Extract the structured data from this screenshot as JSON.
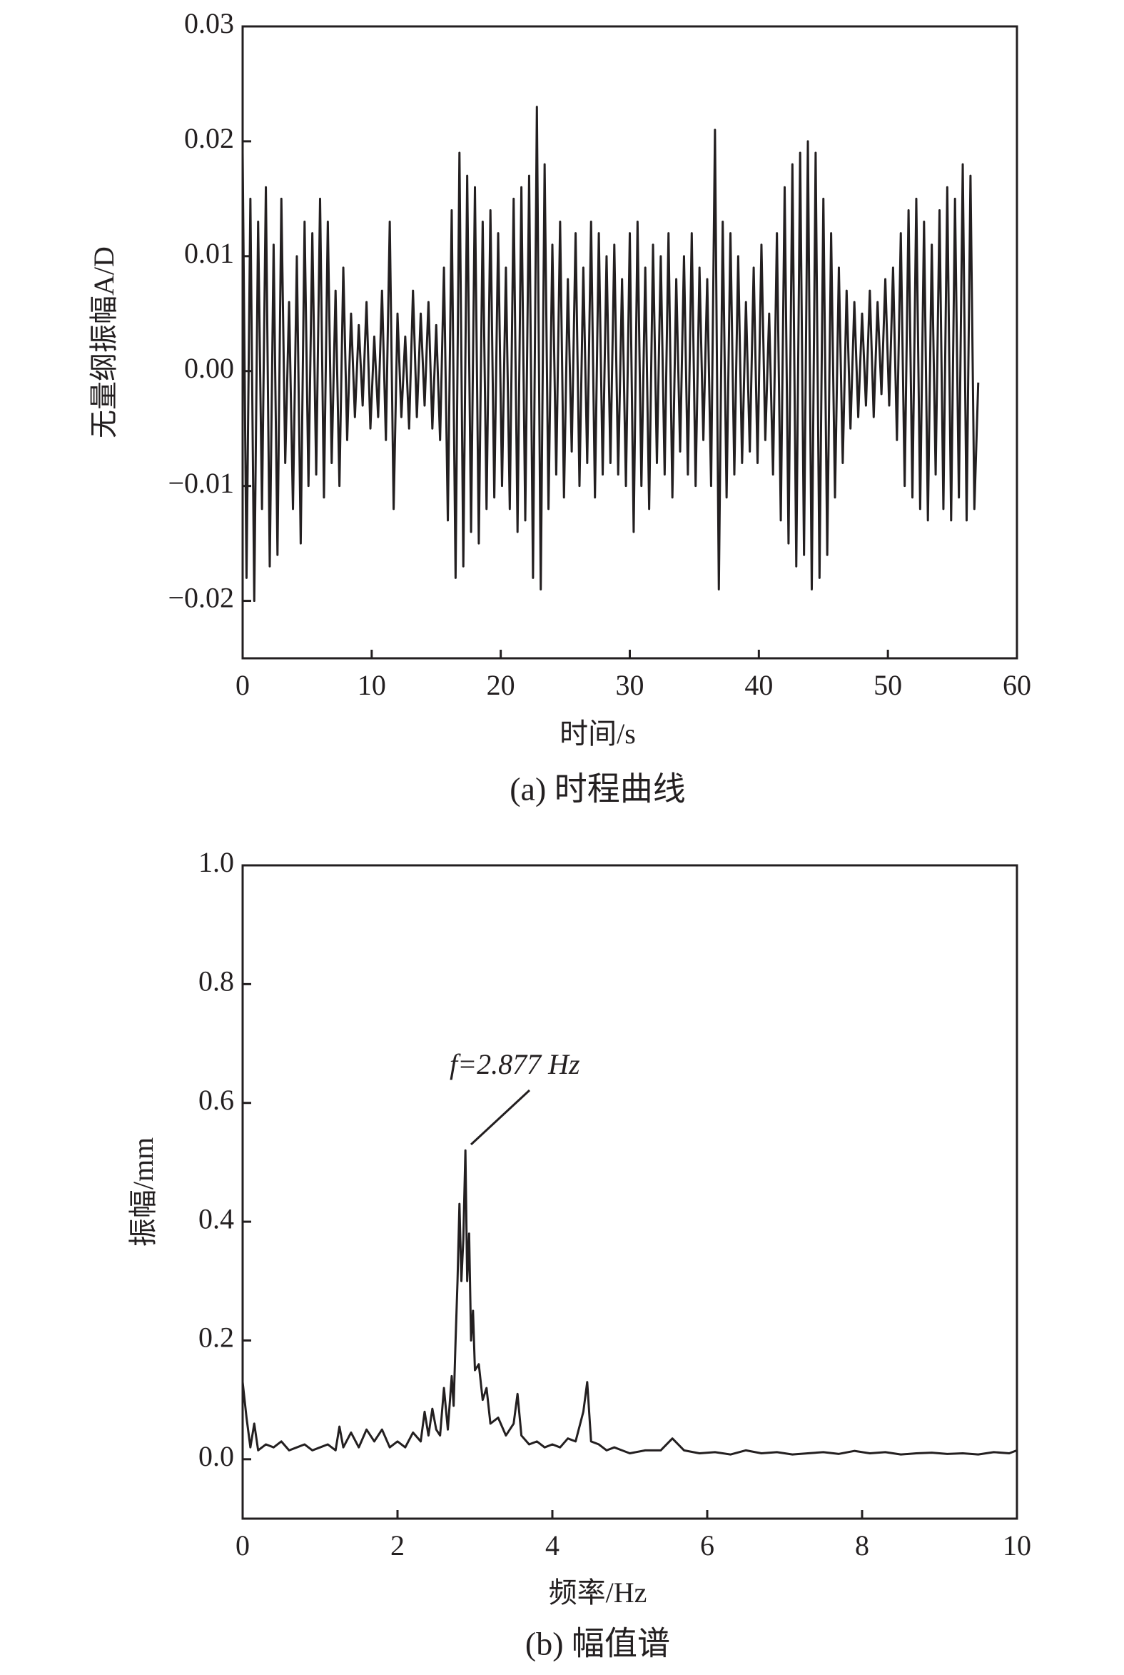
{
  "chart_data": [
    {
      "type": "line",
      "ylabel": "无量纲振幅A/D",
      "xlabel": "时间/s",
      "caption": "(a) 时程曲线",
      "xlim": [
        0,
        60
      ],
      "xticks": [
        0,
        10,
        20,
        30,
        40,
        50,
        60
      ],
      "ylim": [
        -0.025,
        0.03
      ],
      "yticks": [
        {
          "value": -0.02,
          "label": "−0.02"
        },
        {
          "value": -0.01,
          "label": "−0.01"
        },
        {
          "value": 0,
          "label": "0.00"
        },
        0.01,
        0.02,
        0.03
      ],
      "x": [
        0,
        0.3,
        0.6,
        0.9,
        1.2,
        1.5,
        1.8,
        2.1,
        2.4,
        2.7,
        3,
        3.3,
        3.6,
        3.9,
        4.2,
        4.5,
        4.8,
        5.1,
        5.4,
        5.7,
        6,
        6.3,
        6.6,
        6.9,
        7.2,
        7.5,
        7.8,
        8.1,
        8.4,
        8.7,
        9,
        9.3,
        9.6,
        9.9,
        10.2,
        10.5,
        10.8,
        11.1,
        11.4,
        11.7,
        12,
        12.3,
        12.6,
        12.9,
        13.2,
        13.5,
        13.8,
        14.1,
        14.4,
        14.7,
        15,
        15.3,
        15.6,
        15.9,
        16.2,
        16.5,
        16.8,
        17.1,
        17.4,
        17.7,
        18,
        18.3,
        18.6,
        18.9,
        19.2,
        19.5,
        19.8,
        20.1,
        20.4,
        20.7,
        21,
        21.3,
        21.6,
        21.9,
        22.2,
        22.5,
        22.8,
        23.1,
        23.4,
        23.7,
        24,
        24.3,
        24.6,
        24.9,
        25.2,
        25.5,
        25.8,
        26.1,
        26.4,
        26.7,
        27,
        27.3,
        27.6,
        27.9,
        28.2,
        28.5,
        28.8,
        29.1,
        29.4,
        29.7,
        30,
        30.3,
        30.6,
        30.9,
        31.2,
        31.5,
        31.8,
        32.1,
        32.4,
        32.7,
        33,
        33.3,
        33.6,
        33.9,
        34.2,
        34.5,
        34.8,
        35.1,
        35.4,
        35.7,
        36,
        36.3,
        36.6,
        36.9,
        37.2,
        37.5,
        37.8,
        38.1,
        38.4,
        38.7,
        39,
        39.3,
        39.6,
        39.9,
        40.2,
        40.5,
        40.8,
        41.1,
        41.4,
        41.7,
        42,
        42.3,
        42.6,
        42.9,
        43.2,
        43.5,
        43.8,
        44.1,
        44.4,
        44.7,
        45,
        45.3,
        45.6,
        45.9,
        46.2,
        46.5,
        46.8,
        47.1,
        47.4,
        47.7,
        48,
        48.3,
        48.6,
        48.9,
        49.2,
        49.5,
        49.8,
        50.1,
        50.4,
        50.7,
        51,
        51.3,
        51.6,
        51.9,
        52.2,
        52.5,
        52.8,
        53.1,
        53.4,
        53.7,
        54,
        54.3,
        54.6,
        54.9,
        55.2,
        55.5,
        55.8,
        56.1,
        56.4,
        56.7,
        57
      ],
      "series": [
        {
          "color": "#231f20",
          "values": [
            0.019,
            -0.018,
            0.015,
            -0.02,
            0.013,
            -0.012,
            0.016,
            -0.017,
            0.011,
            -0.016,
            0.015,
            -0.008,
            0.006,
            -0.012,
            0.01,
            -0.015,
            0.013,
            -0.01,
            0.012,
            -0.009,
            0.015,
            -0.011,
            0.013,
            -0.008,
            0.007,
            -0.01,
            0.009,
            -0.006,
            0.005,
            -0.004,
            0.004,
            -0.003,
            0.006,
            -0.005,
            0.003,
            -0.004,
            0.007,
            -0.006,
            0.013,
            -0.012,
            0.005,
            -0.004,
            0.003,
            -0.005,
            0.007,
            -0.004,
            0.005,
            -0.003,
            0.006,
            -0.005,
            0.004,
            -0.006,
            0.009,
            -0.013,
            0.014,
            -0.018,
            0.019,
            -0.017,
            0.017,
            -0.014,
            0.016,
            -0.015,
            0.013,
            -0.012,
            0.014,
            -0.011,
            0.012,
            -0.01,
            0.009,
            -0.012,
            0.015,
            -0.014,
            0.016,
            -0.013,
            0.017,
            -0.018,
            0.023,
            -0.019,
            0.018,
            -0.012,
            0.011,
            -0.009,
            0.013,
            -0.011,
            0.008,
            -0.007,
            0.012,
            -0.01,
            0.009,
            -0.008,
            0.013,
            -0.011,
            0.012,
            -0.009,
            0.01,
            -0.008,
            0.011,
            -0.009,
            0.008,
            -0.01,
            0.012,
            -0.014,
            0.013,
            -0.01,
            0.009,
            -0.012,
            0.011,
            -0.008,
            0.01,
            -0.009,
            0.012,
            -0.011,
            0.008,
            -0.007,
            0.01,
            -0.009,
            0.012,
            -0.01,
            0.009,
            -0.006,
            0.008,
            -0.01,
            0.021,
            -0.019,
            0.013,
            -0.011,
            0.012,
            -0.009,
            0.01,
            -0.008,
            0.006,
            -0.007,
            0.009,
            -0.008,
            0.011,
            -0.006,
            0.005,
            -0.009,
            0.012,
            -0.013,
            0.016,
            -0.015,
            0.018,
            -0.017,
            0.019,
            -0.016,
            0.02,
            -0.019,
            0.019,
            -0.018,
            0.015,
            -0.016,
            0.012,
            -0.011,
            0.009,
            -0.008,
            0.007,
            -0.005,
            0.006,
            -0.004,
            0.005,
            -0.003,
            0.007,
            -0.004,
            0.006,
            -0.002,
            0.008,
            -0.003,
            0.009,
            -0.006,
            0.012,
            -0.01,
            0.014,
            -0.011,
            0.015,
            -0.012,
            0.013,
            -0.013,
            0.011,
            -0.009,
            0.014,
            -0.012,
            0.016,
            -0.013,
            0.015,
            -0.011,
            0.018,
            -0.013,
            0.017,
            -0.012,
            -0.001
          ]
        }
      ]
    },
    {
      "type": "line",
      "ylabel": "振幅/mm",
      "xlabel": "频率/Hz",
      "caption": "(b) 幅值谱",
      "annotation": "f=2.877 Hz",
      "xlim": [
        0,
        10
      ],
      "xticks": [
        0,
        2,
        4,
        6,
        8,
        10
      ],
      "ylim": [
        -0.1,
        1.0
      ],
      "yticks": [
        {
          "value": 0,
          "label": "0.0"
        },
        0.2,
        0.4,
        0.6,
        0.8,
        {
          "value": 1,
          "label": "1.0"
        }
      ],
      "x": [
        0,
        0.05,
        0.1,
        0.15,
        0.2,
        0.3,
        0.4,
        0.5,
        0.6,
        0.7,
        0.8,
        0.9,
        1.0,
        1.1,
        1.2,
        1.25,
        1.3,
        1.4,
        1.5,
        1.6,
        1.7,
        1.8,
        1.9,
        2.0,
        2.1,
        2.2,
        2.3,
        2.35,
        2.4,
        2.45,
        2.5,
        2.55,
        2.6,
        2.65,
        2.7,
        2.725,
        2.75,
        2.775,
        2.8,
        2.825,
        2.85,
        2.877,
        2.9,
        2.925,
        2.95,
        2.975,
        3.0,
        3.05,
        3.1,
        3.15,
        3.2,
        3.3,
        3.4,
        3.5,
        3.55,
        3.6,
        3.7,
        3.8,
        3.9,
        4.0,
        4.1,
        4.2,
        4.3,
        4.4,
        4.45,
        4.5,
        4.6,
        4.7,
        4.8,
        4.9,
        5.0,
        5.2,
        5.4,
        5.55,
        5.7,
        5.9,
        6.1,
        6.3,
        6.5,
        6.7,
        6.9,
        7.1,
        7.3,
        7.5,
        7.7,
        7.9,
        8.1,
        8.3,
        8.5,
        8.7,
        8.9,
        9.1,
        9.3,
        9.5,
        9.7,
        9.9,
        10.0
      ],
      "series": [
        {
          "color": "#231f20",
          "values": [
            0.13,
            0.07,
            0.02,
            0.06,
            0.015,
            0.025,
            0.02,
            0.03,
            0.015,
            0.02,
            0.025,
            0.015,
            0.02,
            0.025,
            0.015,
            0.055,
            0.02,
            0.045,
            0.02,
            0.05,
            0.03,
            0.05,
            0.02,
            0.03,
            0.02,
            0.045,
            0.03,
            0.08,
            0.04,
            0.085,
            0.05,
            0.04,
            0.12,
            0.05,
            0.14,
            0.09,
            0.2,
            0.3,
            0.43,
            0.3,
            0.37,
            0.52,
            0.3,
            0.38,
            0.2,
            0.25,
            0.15,
            0.16,
            0.1,
            0.12,
            0.06,
            0.07,
            0.04,
            0.06,
            0.11,
            0.04,
            0.025,
            0.03,
            0.02,
            0.025,
            0.02,
            0.035,
            0.03,
            0.08,
            0.13,
            0.03,
            0.025,
            0.015,
            0.02,
            0.015,
            0.01,
            0.015,
            0.015,
            0.035,
            0.015,
            0.01,
            0.012,
            0.008,
            0.015,
            0.01,
            0.012,
            0.008,
            0.01,
            0.012,
            0.009,
            0.014,
            0.01,
            0.012,
            0.008,
            0.01,
            0.011,
            0.009,
            0.01,
            0.008,
            0.012,
            0.01,
            0.015
          ]
        }
      ]
    }
  ]
}
